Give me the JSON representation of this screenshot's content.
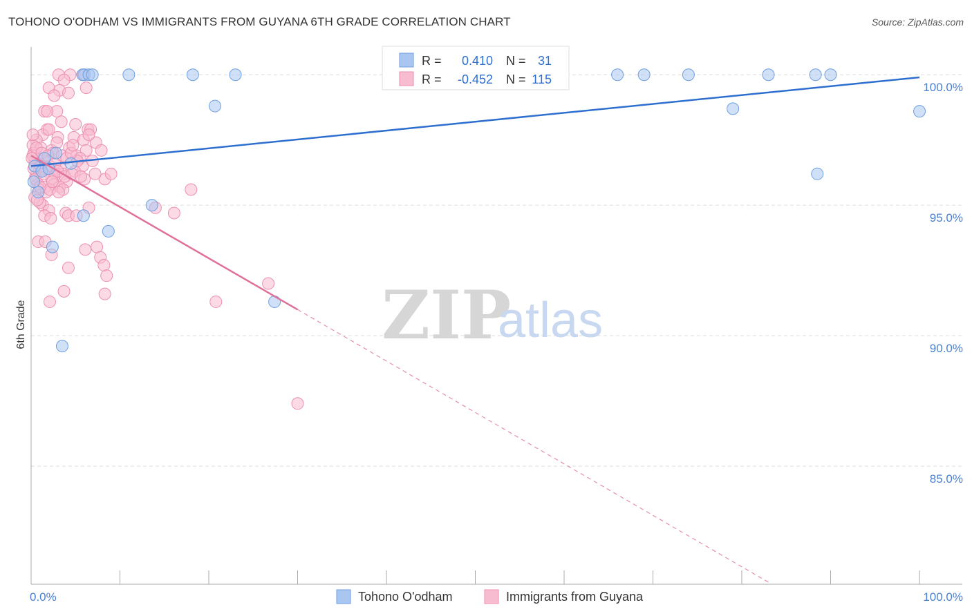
{
  "header": {
    "title": "TOHONO O'ODHAM VS IMMIGRANTS FROM GUYANA 6TH GRADE CORRELATION CHART",
    "source": "Source: ZipAtlas.com"
  },
  "watermark": {
    "zip": "ZIP",
    "atlas": "atlas"
  },
  "legend": {
    "series1": {
      "r_label": "R =",
      "r_value": "0.410",
      "n_label": "N =",
      "n_value": "31"
    },
    "series2": {
      "r_label": "R =",
      "r_value": "-0.452",
      "n_label": "N =",
      "n_value": "115"
    }
  },
  "chart_data": {
    "type": "scatter",
    "title": "TOHONO O'ODHAM VS IMMIGRANTS FROM GUYANA 6TH GRADE CORRELATION CHART",
    "xlabel": "",
    "ylabel": "6th Grade",
    "xlim": [
      0,
      100
    ],
    "ylim": [
      80.5,
      100.8
    ],
    "x_tick_labels": [
      "0.0%",
      "100.0%"
    ],
    "y_ticks": [
      100,
      95,
      90,
      85
    ],
    "y_tick_labels": [
      "100.0%",
      "95.0%",
      "90.0%",
      "85.0%"
    ],
    "grid": true,
    "colors": {
      "series1_fill": "#a9c6f0",
      "series1_stroke": "#6f9fe0",
      "series1_line": "#2d6fd0",
      "series2_fill": "#f7bcd0",
      "series2_stroke": "#ec8fb0",
      "series2_line": "#e0709a",
      "legend_value": "#2d6fd0"
    },
    "series": [
      {
        "name": "Tohono O'odham",
        "trend": {
          "x0": 0,
          "y0": 96.5,
          "x1": 100,
          "y1": 99.9,
          "dash_from": null
        },
        "points": [
          [
            6.0,
            100
          ],
          [
            5.8,
            100
          ],
          [
            6.5,
            100
          ],
          [
            6.9,
            100
          ],
          [
            11.0,
            100
          ],
          [
            18.2,
            100
          ],
          [
            23.0,
            100
          ],
          [
            66.0,
            100
          ],
          [
            69.0,
            100
          ],
          [
            74.0,
            100
          ],
          [
            83.0,
            100
          ],
          [
            88.3,
            100
          ],
          [
            90.0,
            100
          ],
          [
            20.7,
            98.8
          ],
          [
            79.0,
            98.7
          ],
          [
            100.0,
            98.6
          ],
          [
            88.5,
            96.2
          ],
          [
            0.4,
            96.5
          ],
          [
            1.2,
            96.3
          ],
          [
            2.0,
            96.4
          ],
          [
            4.5,
            96.6
          ],
          [
            0.8,
            95.5
          ],
          [
            0.3,
            95.9
          ],
          [
            13.6,
            95.0
          ],
          [
            5.9,
            94.6
          ],
          [
            8.7,
            94.0
          ],
          [
            2.4,
            93.4
          ],
          [
            27.4,
            91.3
          ],
          [
            3.5,
            89.6
          ],
          [
            2.8,
            97.0
          ],
          [
            1.5,
            96.8
          ]
        ]
      },
      {
        "name": "Immigrants from Guyana",
        "trend": {
          "x0": 0,
          "y0": 96.9,
          "x1": 30,
          "y1": 91.0,
          "x2": 100,
          "y2": 77.2
        },
        "points": [
          [
            3.1,
            100
          ],
          [
            4.4,
            100
          ],
          [
            5.9,
            100
          ],
          [
            3.7,
            99.8
          ],
          [
            2.0,
            99.5
          ],
          [
            3.2,
            99.4
          ],
          [
            6.2,
            99.5
          ],
          [
            2.6,
            99.2
          ],
          [
            4.2,
            99.3
          ],
          [
            1.5,
            98.6
          ],
          [
            2.9,
            98.6
          ],
          [
            1.8,
            98.6
          ],
          [
            3.4,
            98.2
          ],
          [
            5.0,
            98.1
          ],
          [
            1.8,
            97.9
          ],
          [
            3.0,
            97.6
          ],
          [
            1.3,
            97.7
          ],
          [
            0.6,
            97.5
          ],
          [
            4.8,
            97.6
          ],
          [
            6.4,
            97.9
          ],
          [
            6.7,
            97.9
          ],
          [
            5.9,
            97.5
          ],
          [
            7.3,
            97.4
          ],
          [
            0.2,
            97.3
          ],
          [
            1.1,
            97.2
          ],
          [
            2.3,
            97.1
          ],
          [
            4.3,
            97.2
          ],
          [
            6.2,
            97.1
          ],
          [
            7.9,
            97.1
          ],
          [
            0.3,
            97.0
          ],
          [
            2.5,
            97.0
          ],
          [
            3.5,
            96.9
          ],
          [
            5.1,
            96.9
          ],
          [
            4.0,
            96.8
          ],
          [
            5.5,
            96.8
          ],
          [
            0.4,
            96.7
          ],
          [
            1.4,
            96.7
          ],
          [
            2.1,
            96.5
          ],
          [
            0.7,
            96.6
          ],
          [
            1.7,
            96.4
          ],
          [
            3.3,
            96.4
          ],
          [
            5.8,
            96.5
          ],
          [
            0.9,
            96.3
          ],
          [
            2.8,
            96.2
          ],
          [
            3.6,
            96.2
          ],
          [
            4.9,
            96.3
          ],
          [
            0.5,
            96.1
          ],
          [
            2.3,
            96.0
          ],
          [
            4.0,
            95.9
          ],
          [
            6.0,
            96.0
          ],
          [
            8.3,
            96.0
          ],
          [
            0.8,
            95.8
          ],
          [
            1.6,
            95.7
          ],
          [
            2.6,
            95.8
          ],
          [
            3.2,
            95.7
          ],
          [
            3.6,
            95.6
          ],
          [
            0.9,
            95.6
          ],
          [
            1.7,
            95.5
          ],
          [
            2.1,
            95.6
          ],
          [
            18.0,
            95.6
          ],
          [
            0.4,
            95.3
          ],
          [
            1.3,
            95.0
          ],
          [
            1.0,
            95.1
          ],
          [
            2.0,
            94.8
          ],
          [
            3.9,
            94.7
          ],
          [
            6.5,
            94.9
          ],
          [
            14.0,
            94.9
          ],
          [
            16.1,
            94.7
          ],
          [
            1.5,
            94.6
          ],
          [
            2.2,
            94.5
          ],
          [
            4.2,
            94.6
          ],
          [
            5.1,
            94.6
          ],
          [
            0.8,
            93.6
          ],
          [
            1.6,
            93.6
          ],
          [
            6.1,
            93.3
          ],
          [
            7.4,
            93.4
          ],
          [
            2.3,
            93.1
          ],
          [
            7.8,
            93.0
          ],
          [
            8.2,
            92.7
          ],
          [
            4.2,
            92.6
          ],
          [
            8.5,
            92.3
          ],
          [
            26.7,
            92.0
          ],
          [
            3.7,
            91.7
          ],
          [
            8.3,
            91.6
          ],
          [
            2.1,
            91.3
          ],
          [
            20.8,
            91.3
          ],
          [
            30.0,
            87.4
          ],
          [
            0.2,
            96.9
          ],
          [
            0.6,
            97.2
          ],
          [
            1.2,
            97.0
          ],
          [
            1.9,
            96.9
          ],
          [
            2.7,
            96.6
          ],
          [
            0.3,
            96.4
          ],
          [
            1.1,
            96.5
          ],
          [
            0.5,
            96.0
          ],
          [
            3.0,
            96.3
          ],
          [
            3.8,
            96.1
          ],
          [
            4.6,
            96.2
          ],
          [
            1.4,
            96.2
          ],
          [
            2.4,
            95.9
          ],
          [
            0.7,
            95.2
          ],
          [
            5.2,
            96.7
          ],
          [
            6.9,
            96.7
          ],
          [
            4.5,
            97.0
          ],
          [
            3.1,
            95.5
          ],
          [
            5.6,
            96.1
          ],
          [
            1.0,
            95.7
          ],
          [
            2.9,
            97.4
          ],
          [
            0.1,
            96.8
          ],
          [
            7.2,
            96.2
          ],
          [
            9.0,
            96.2
          ],
          [
            6.5,
            97.7
          ],
          [
            0.2,
            97.7
          ],
          [
            2.0,
            97.9
          ],
          [
            4.7,
            97.3
          ]
        ]
      }
    ]
  }
}
